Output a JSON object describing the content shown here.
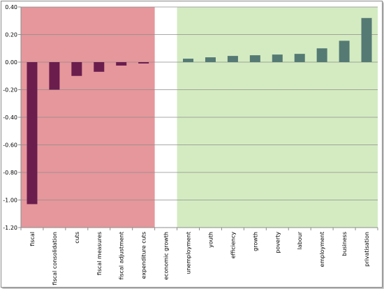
{
  "chart_data": {
    "type": "bar",
    "categories": [
      "fiscal",
      "fiscal consolidation",
      "cuts",
      "fiscal measures",
      "fiscal adjustment",
      "expenditure cuts",
      "economic growth",
      "unemployment",
      "youth",
      "efficiency",
      "growth",
      "poverty",
      "labour",
      "employment",
      "business",
      "privatisation"
    ],
    "values": [
      -1.03,
      -0.2,
      -0.1,
      -0.07,
      -0.025,
      -0.01,
      0,
      0.025,
      0.035,
      0.045,
      0.05,
      0.055,
      0.06,
      0.1,
      0.155,
      0.32
    ],
    "ylim": [
      -1.2,
      0.4
    ],
    "yticks": [
      "0.40",
      "0.20",
      "0.00",
      "-0.20",
      "-0.40",
      "-0.60",
      "-0.80",
      "-1.00",
      "-1.20"
    ],
    "grid": true,
    "legend": "none",
    "colors": {
      "negative_bar": "#6b1d4e",
      "positive_bar": "#557a74",
      "negative_region": "#e6979b",
      "positive_region": "#d4ebc1",
      "gridline": "#8c8c8c"
    }
  }
}
